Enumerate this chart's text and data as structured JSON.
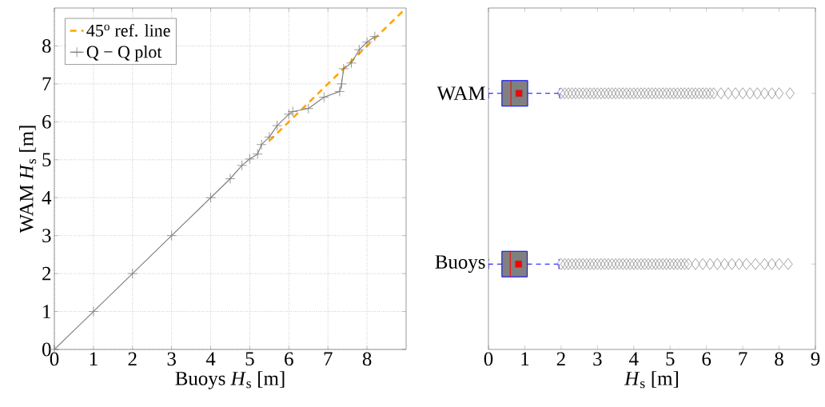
{
  "chart_data": [
    {
      "type": "line",
      "xlabel": "Buoys *H*$_{s}$ [m]",
      "ylabel": "WAM *H*$_{s}$ [m]",
      "xlim": [
        0,
        9
      ],
      "ylim": [
        0,
        9
      ],
      "xticks": [
        0,
        1,
        2,
        3,
        4,
        5,
        6,
        7,
        8
      ],
      "yticks": [
        0,
        1,
        2,
        3,
        4,
        5,
        6,
        7,
        8
      ],
      "grid": true,
      "legend": "top left",
      "series": [
        {
          "name": "45$^{o}$ ref. line",
          "color": "#ffa500",
          "line_style": "dashed",
          "marker": "none",
          "x": [
            5.5,
            9
          ],
          "values": [
            5.5,
            9
          ]
        },
        {
          "name": "Q − Q plot",
          "color": "#808080",
          "line_style": "solid",
          "marker": "cross",
          "x": [
            0,
            1,
            2,
            3,
            4,
            4.5,
            4.8,
            5,
            5.2,
            5.3,
            5.5,
            5.7,
            6,
            6.1,
            6.5,
            6.9,
            7.3,
            7.35,
            7.4,
            7.6,
            7.8,
            8,
            8.2
          ],
          "values": [
            0,
            1,
            2,
            3,
            4,
            4.5,
            4.85,
            5.02,
            5.15,
            5.4,
            5.6,
            5.9,
            6.2,
            6.27,
            6.35,
            6.65,
            6.8,
            7.0,
            7.4,
            7.55,
            7.9,
            8.1,
            8.25
          ]
        }
      ]
    },
    {
      "type": "box",
      "orientation": "horizontal",
      "xlabel": "*H*$_{s}$ [m]",
      "xlim": [
        0,
        9
      ],
      "xticks": [
        0,
        1,
        2,
        3,
        4,
        5,
        6,
        7,
        8,
        9
      ],
      "color": "#808080",
      "categories": [
        "WAM",
        "Buoys"
      ],
      "boxes": [
        {
          "low": 0,
          "q1": 0.37,
          "median": 0.62,
          "q3": 1.08,
          "high": 1.96,
          "mean": 0.84,
          "outliers": [
            2.0,
            2.1,
            2.2,
            2.3,
            2.4,
            2.5,
            2.6,
            2.7,
            2.8,
            2.9,
            3.0,
            3.1,
            3.2,
            3.3,
            3.4,
            3.5,
            3.6,
            3.7,
            3.8,
            3.9,
            4.0,
            4.1,
            4.2,
            4.3,
            4.4,
            4.5,
            4.6,
            4.7,
            4.8,
            4.9,
            5.0,
            5.1,
            5.2,
            5.3,
            5.4,
            5.5,
            5.6,
            5.7,
            5.8,
            5.9,
            6.0,
            6.1,
            6.2,
            6.4,
            6.6,
            6.8,
            7.0,
            7.2,
            7.4,
            7.6,
            7.8,
            8.0,
            8.3
          ]
        },
        {
          "low": 0,
          "q1": 0.37,
          "median": 0.6,
          "q3": 1.07,
          "high": 1.94,
          "mean": 0.83,
          "outliers": [
            2.0,
            2.1,
            2.2,
            2.3,
            2.4,
            2.5,
            2.6,
            2.7,
            2.8,
            2.9,
            3.0,
            3.1,
            3.2,
            3.3,
            3.4,
            3.5,
            3.6,
            3.7,
            3.8,
            3.9,
            4.0,
            4.1,
            4.2,
            4.3,
            4.4,
            4.5,
            4.6,
            4.7,
            4.8,
            4.9,
            5.0,
            5.1,
            5.2,
            5.3,
            5.4,
            5.5,
            5.7,
            5.9,
            6.1,
            6.3,
            6.5,
            6.7,
            6.9,
            7.1,
            7.35,
            7.6,
            7.8,
            8.0,
            8.25
          ]
        }
      ]
    }
  ]
}
